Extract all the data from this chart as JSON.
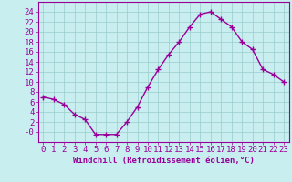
{
  "x": [
    0,
    1,
    2,
    3,
    4,
    5,
    6,
    7,
    8,
    9,
    10,
    11,
    12,
    13,
    14,
    15,
    16,
    17,
    18,
    19,
    20,
    21,
    22,
    23
  ],
  "y": [
    7,
    6.5,
    5.5,
    3.5,
    2.5,
    -0.5,
    -0.5,
    -0.5,
    2,
    5,
    9,
    12.5,
    15.5,
    18,
    21,
    23.5,
    24,
    22.5,
    21,
    18,
    16.5,
    12.5,
    11.5,
    10
  ],
  "line_color": "#990099",
  "marker": "+",
  "bg_color": "#c8eef0",
  "grid_color": "#99cccc",
  "xlabel": "Windchill (Refroidissement éolien,°C)",
  "xlabel_color": "#990099",
  "ylim": [
    -2,
    26
  ],
  "yticks": [
    0,
    2,
    4,
    6,
    8,
    10,
    12,
    14,
    16,
    18,
    20,
    22,
    24
  ],
  "ytick_labels": [
    "-0",
    "2",
    "4",
    "6",
    "8",
    "10",
    "12",
    "14",
    "16",
    "18",
    "20",
    "22",
    "24"
  ],
  "xticks": [
    0,
    1,
    2,
    3,
    4,
    5,
    6,
    7,
    8,
    9,
    10,
    11,
    12,
    13,
    14,
    15,
    16,
    17,
    18,
    19,
    20,
    21,
    22,
    23
  ],
  "axis_color": "#990099",
  "tick_color": "#990099",
  "font_size": 6.5,
  "line_width": 1.0,
  "marker_size": 4
}
